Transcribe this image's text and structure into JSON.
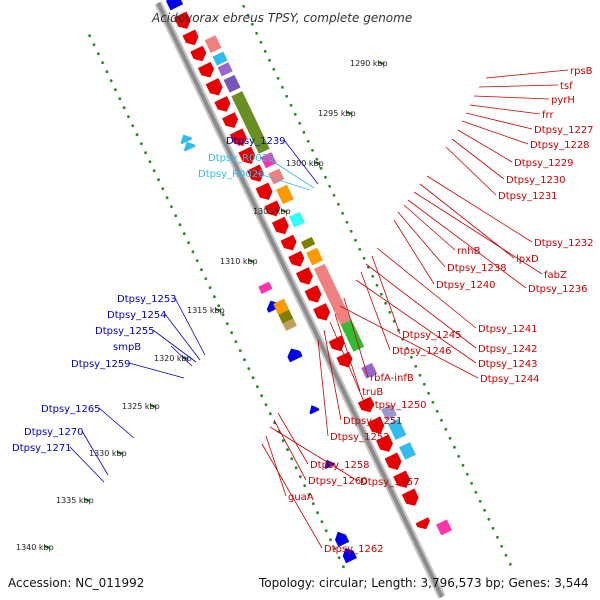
{
  "title": "Acidovorax ebreus TPSY, complete genome",
  "footer": {
    "accession": "Accession: NC_011992",
    "topology": "Topology: circular; Length: 3,796,573 bp; Genes: 3,544"
  },
  "colors": {
    "backbone": "#8c8c8c",
    "forward_strand_genes": "#e60000",
    "reverse_strand_genes": "#0000e6",
    "rna_genes": "#33ccff",
    "tick_marks": "#1a7a1a",
    "dot_rings": "#2a8a2a"
  },
  "ticks": [
    {
      "label": "1290 kbp"
    },
    {
      "label": "1295 kbp"
    },
    {
      "label": "1300 kbp"
    },
    {
      "label": "1305 kbp"
    },
    {
      "label": "1310 kbp"
    },
    {
      "label": "1315 kbp"
    },
    {
      "label": "1320 kbp"
    },
    {
      "label": "1325 kbp"
    },
    {
      "label": "1330 kbp"
    },
    {
      "label": "1335 kbp"
    },
    {
      "label": "1340 kbp"
    }
  ],
  "left_labels": [
    {
      "text": "Dtpsy_1239",
      "color": "#0000cc"
    },
    {
      "text": "Dtpsy_R0025",
      "color": "#33bbee"
    },
    {
      "text": "Dtpsy_R0026",
      "color": "#33bbee"
    },
    {
      "text": "Dtpsy_1253",
      "color": "#0000cc"
    },
    {
      "text": "Dtpsy_1254",
      "color": "#0000cc"
    },
    {
      "text": "Dtpsy_1255",
      "color": "#0000cc"
    },
    {
      "text": "smpB",
      "color": "#0000cc"
    },
    {
      "text": "Dtpsy_1259",
      "color": "#0000cc"
    },
    {
      "text": "Dtpsy_1265",
      "color": "#0000cc"
    },
    {
      "text": "Dtpsy_1270",
      "color": "#0000cc"
    },
    {
      "text": "Dtpsy_1271",
      "color": "#0000cc"
    }
  ],
  "right_labels": [
    {
      "text": "rpsB",
      "color": "#cc0000"
    },
    {
      "text": "tsf",
      "color": "#cc0000"
    },
    {
      "text": "pyrH",
      "color": "#cc0000"
    },
    {
      "text": "frr",
      "color": "#cc0000"
    },
    {
      "text": "Dtpsy_1227",
      "color": "#cc0000"
    },
    {
      "text": "Dtpsy_1228",
      "color": "#cc0000"
    },
    {
      "text": "Dtpsy_1229",
      "color": "#cc0000"
    },
    {
      "text": "Dtpsy_1230",
      "color": "#cc0000"
    },
    {
      "text": "Dtpsy_1231",
      "color": "#cc0000"
    },
    {
      "text": "Dtpsy_1232",
      "color": "#cc0000"
    },
    {
      "text": "lpxD",
      "color": "#cc0000"
    },
    {
      "text": "fabZ",
      "color": "#cc0000"
    },
    {
      "text": "Dtpsy_1236",
      "color": "#cc0000"
    },
    {
      "text": "rnhB",
      "color": "#cc0000"
    },
    {
      "text": "Dtpsy_1238",
      "color": "#cc0000"
    },
    {
      "text": "Dtpsy_1240",
      "color": "#cc0000"
    },
    {
      "text": "Dtpsy_1241",
      "color": "#cc0000"
    },
    {
      "text": "Dtpsy_1245",
      "color": "#cc0000"
    },
    {
      "text": "Dtpsy_1242",
      "color": "#cc0000"
    },
    {
      "text": "Dtpsy_1246",
      "color": "#cc0000"
    },
    {
      "text": "Dtpsy_1243",
      "color": "#cc0000"
    },
    {
      "text": "rbfA-infB",
      "color": "#cc0000"
    },
    {
      "text": "Dtpsy_1244",
      "color": "#cc0000"
    },
    {
      "text": "truB",
      "color": "#cc0000"
    },
    {
      "text": "Dtpsy_1250",
      "color": "#cc0000"
    },
    {
      "text": "Dtpsy_1251",
      "color": "#cc0000"
    },
    {
      "text": "Dtpsy_1252",
      "color": "#cc0000"
    },
    {
      "text": "Dtpsy_1258",
      "color": "#cc0000"
    },
    {
      "text": "Dtpsy_1260",
      "color": "#cc0000"
    },
    {
      "text": "Dtpsy_1257",
      "color": "#cc0000"
    },
    {
      "text": "guaA",
      "color": "#cc0000"
    },
    {
      "text": "Dtpsy_1262",
      "color": "#cc0000"
    }
  ]
}
